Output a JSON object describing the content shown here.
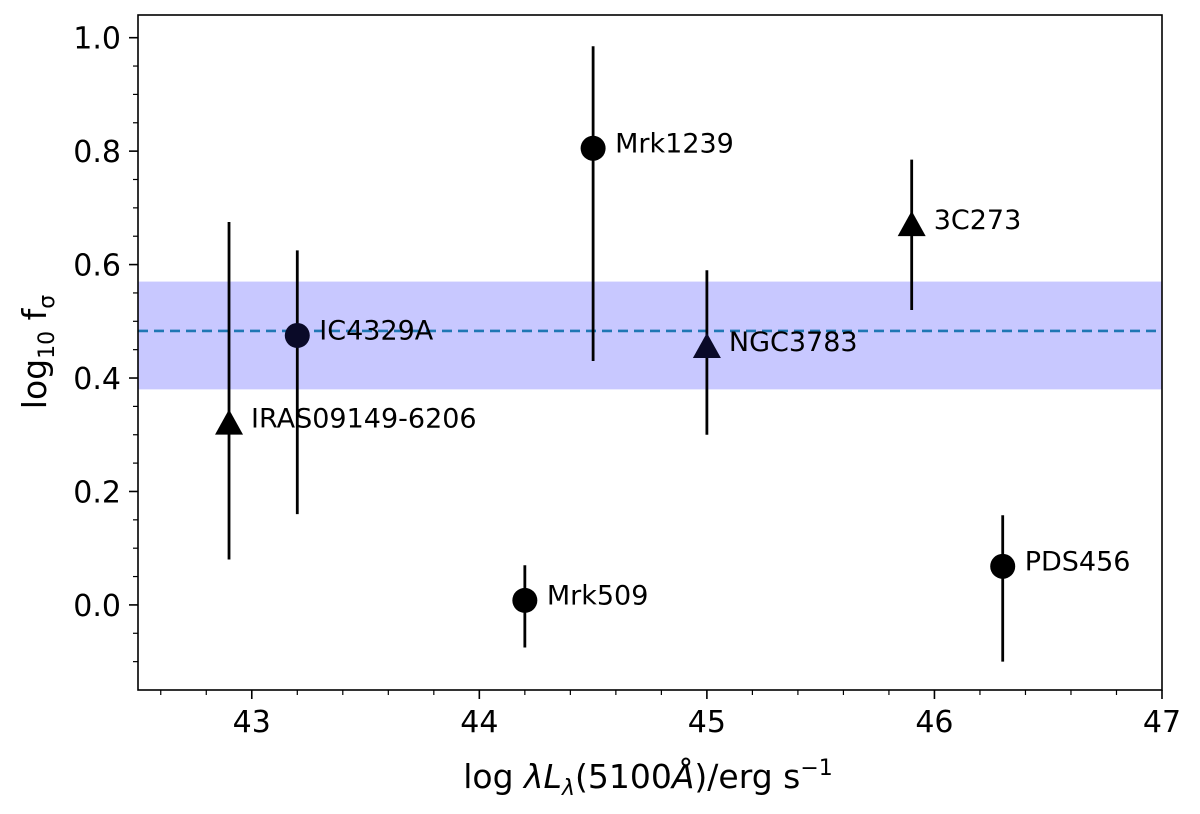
{
  "chart_data": {
    "type": "scatter",
    "xlabel": "log λL_λ(5100Å)/erg s⁻¹",
    "ylabel": "log10 fσ",
    "xlim": [
      42.5,
      47.0
    ],
    "ylim": [
      -0.15,
      1.04
    ],
    "xticks": [
      {
        "value": 43,
        "label": "43"
      },
      {
        "value": 44,
        "label": "44"
      },
      {
        "value": 45,
        "label": "45"
      },
      {
        "value": 46,
        "label": "46"
      },
      {
        "value": 47,
        "label": "47"
      }
    ],
    "yticks": [
      {
        "value": 0.0,
        "label": "0.0"
      },
      {
        "value": 0.2,
        "label": "0.2"
      },
      {
        "value": 0.4,
        "label": "0.4"
      },
      {
        "value": 0.6,
        "label": "0.6"
      },
      {
        "value": 0.8,
        "label": "0.8"
      },
      {
        "value": 1.0,
        "label": "1.0"
      }
    ],
    "mean_line": {
      "y": 0.483,
      "color": "#1f77b4",
      "style": "dashed"
    },
    "band": {
      "y_low": 0.38,
      "y_high": 0.57,
      "color": "#c8c8ff"
    },
    "grid": false,
    "points": [
      {
        "name": "IRAS09149-6206",
        "x": 42.9,
        "y": 0.32,
        "y_low": 0.08,
        "y_high": 0.675,
        "marker": "triangle",
        "color": "#000000"
      },
      {
        "name": "IC4329A",
        "x": 43.2,
        "y": 0.475,
        "y_low": 0.16,
        "y_high": 0.625,
        "marker": "circle",
        "color": "#0a0a28"
      },
      {
        "name": "Mrk509",
        "x": 44.2,
        "y": 0.008,
        "y_low": -0.075,
        "y_high": 0.07,
        "marker": "circle",
        "color": "#000000"
      },
      {
        "name": "Mrk1239",
        "x": 44.5,
        "y": 0.805,
        "y_low": 0.43,
        "y_high": 0.985,
        "marker": "circle",
        "color": "#000000"
      },
      {
        "name": "NGC3783",
        "x": 45.0,
        "y": 0.455,
        "y_low": 0.3,
        "y_high": 0.59,
        "marker": "triangle",
        "color": "#0a0a28"
      },
      {
        "name": "3C273",
        "x": 45.9,
        "y": 0.67,
        "y_low": 0.52,
        "y_high": 0.785,
        "marker": "triangle",
        "color": "#000000"
      },
      {
        "name": "PDS456",
        "x": 46.3,
        "y": 0.068,
        "y_low": -0.1,
        "y_high": 0.158,
        "marker": "circle",
        "color": "#000000"
      }
    ]
  }
}
